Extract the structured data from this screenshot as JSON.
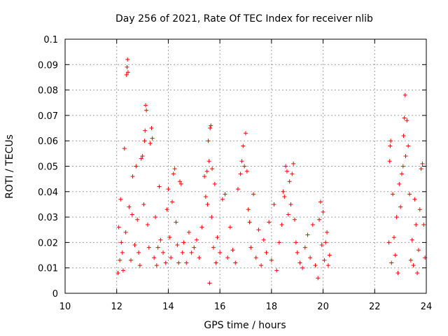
{
  "chart_data": {
    "type": "scatter",
    "title": "Day 256 of 2021, Rate Of TEC Index for receiver nlib",
    "xlabel": "GPS time / hours",
    "ylabel": "ROTI / TECUs",
    "xlim": [
      10,
      24
    ],
    "ylim": [
      0,
      0.1
    ],
    "xticks": [
      "10",
      "12",
      "14",
      "16",
      "18",
      "20",
      "22",
      "24"
    ],
    "yticks": [
      "0",
      "0.01",
      "0.02",
      "0.03",
      "0.04",
      "0.05",
      "0.06",
      "0.07",
      "0.08",
      "0.09",
      "0.1"
    ],
    "grid": true,
    "marker": "+",
    "color": "#ff0000",
    "series": [
      {
        "name": "",
        "points": [
          [
            12.05,
            0.008
          ],
          [
            12.08,
            0.026
          ],
          [
            12.12,
            0.013
          ],
          [
            12.15,
            0.037
          ],
          [
            12.18,
            0.02
          ],
          [
            12.22,
            0.016
          ],
          [
            12.25,
            0.009
          ],
          [
            12.3,
            0.057
          ],
          [
            12.35,
            0.024
          ],
          [
            12.38,
            0.086
          ],
          [
            12.4,
            0.089
          ],
          [
            12.42,
            0.092
          ],
          [
            12.44,
            0.087
          ],
          [
            12.48,
            0.034
          ],
          [
            12.55,
            0.013
          ],
          [
            12.6,
            0.031
          ],
          [
            12.62,
            0.046
          ],
          [
            12.7,
            0.019
          ],
          [
            12.75,
            0.05
          ],
          [
            12.8,
            0.029
          ],
          [
            12.85,
            0.016
          ],
          [
            12.9,
            0.011
          ],
          [
            12.95,
            0.053
          ],
          [
            13.0,
            0.054
          ],
          [
            13.05,
            0.035
          ],
          [
            13.08,
            0.06
          ],
          [
            13.1,
            0.064
          ],
          [
            13.12,
            0.074
          ],
          [
            13.15,
            0.072
          ],
          [
            13.2,
            0.027
          ],
          [
            13.25,
            0.018
          ],
          [
            13.3,
            0.059
          ],
          [
            13.35,
            0.065
          ],
          [
            13.38,
            0.061
          ],
          [
            13.45,
            0.014
          ],
          [
            13.5,
            0.03
          ],
          [
            13.55,
            0.011
          ],
          [
            13.6,
            0.018
          ],
          [
            13.65,
            0.042
          ],
          [
            13.7,
            0.021
          ],
          [
            13.8,
            0.016
          ],
          [
            13.9,
            0.012
          ],
          [
            13.95,
            0.033
          ],
          [
            14.0,
            0.041
          ],
          [
            14.05,
            0.022
          ],
          [
            14.1,
            0.014
          ],
          [
            14.15,
            0.036
          ],
          [
            14.2,
            0.047
          ],
          [
            14.25,
            0.049
          ],
          [
            14.3,
            0.028
          ],
          [
            14.35,
            0.019
          ],
          [
            14.4,
            0.012
          ],
          [
            14.45,
            0.044
          ],
          [
            14.5,
            0.043
          ],
          [
            14.55,
            0.016
          ],
          [
            14.6,
            0.02
          ],
          [
            14.7,
            0.012
          ],
          [
            14.8,
            0.024
          ],
          [
            14.9,
            0.016
          ],
          [
            15.0,
            0.018
          ],
          [
            15.1,
            0.021
          ],
          [
            15.2,
            0.014
          ],
          [
            15.3,
            0.026
          ],
          [
            15.4,
            0.046
          ],
          [
            15.45,
            0.038
          ],
          [
            15.5,
            0.048
          ],
          [
            15.52,
            0.035
          ],
          [
            15.55,
            0.06
          ],
          [
            15.58,
            0.052
          ],
          [
            15.6,
            0.004
          ],
          [
            15.62,
            0.065
          ],
          [
            15.65,
            0.066
          ],
          [
            15.68,
            0.03
          ],
          [
            15.7,
            0.049
          ],
          [
            15.75,
            0.018
          ],
          [
            15.8,
            0.043
          ],
          [
            15.85,
            0.012
          ],
          [
            15.9,
            0.022
          ],
          [
            16.0,
            0.016
          ],
          [
            16.1,
            0.037
          ],
          [
            16.2,
            0.039
          ],
          [
            16.3,
            0.014
          ],
          [
            16.4,
            0.026
          ],
          [
            16.5,
            0.017
          ],
          [
            16.6,
            0.012
          ],
          [
            16.7,
            0.041
          ],
          [
            16.8,
            0.047
          ],
          [
            16.85,
            0.052
          ],
          [
            16.9,
            0.058
          ],
          [
            16.95,
            0.05
          ],
          [
            17.0,
            0.063
          ],
          [
            17.05,
            0.048
          ],
          [
            17.1,
            0.033
          ],
          [
            17.15,
            0.028
          ],
          [
            17.2,
            0.018
          ],
          [
            17.3,
            0.039
          ],
          [
            17.4,
            0.014
          ],
          [
            17.5,
            0.025
          ],
          [
            17.6,
            0.011
          ],
          [
            17.7,
            0.021
          ],
          [
            17.8,
            0.016
          ],
          [
            17.9,
            0.028
          ],
          [
            18.0,
            0.013
          ],
          [
            18.1,
            0.035
          ],
          [
            18.2,
            0.009
          ],
          [
            18.3,
            0.02
          ],
          [
            18.4,
            0.027
          ],
          [
            18.45,
            0.04
          ],
          [
            18.5,
            0.038
          ],
          [
            18.55,
            0.05
          ],
          [
            18.6,
            0.048
          ],
          [
            18.65,
            0.031
          ],
          [
            18.7,
            0.044
          ],
          [
            18.75,
            0.035
          ],
          [
            18.8,
            0.047
          ],
          [
            18.85,
            0.051
          ],
          [
            18.9,
            0.029
          ],
          [
            18.95,
            0.02
          ],
          [
            19.0,
            0.016
          ],
          [
            19.1,
            0.012
          ],
          [
            19.2,
            0.01
          ],
          [
            19.3,
            0.018
          ],
          [
            19.4,
            0.023
          ],
          [
            19.5,
            0.014
          ],
          [
            19.6,
            0.027
          ],
          [
            19.7,
            0.011
          ],
          [
            19.8,
            0.006
          ],
          [
            19.85,
            0.029
          ],
          [
            19.9,
            0.036
          ],
          [
            19.95,
            0.019
          ],
          [
            20.0,
            0.032
          ],
          [
            20.05,
            0.013
          ],
          [
            20.1,
            0.02
          ],
          [
            20.15,
            0.024
          ],
          [
            20.2,
            0.011
          ],
          [
            20.25,
            0.015
          ],
          [
            22.55,
            0.02
          ],
          [
            22.58,
            0.052
          ],
          [
            22.6,
            0.058
          ],
          [
            22.62,
            0.06
          ],
          [
            22.65,
            0.012
          ],
          [
            22.7,
            0.039
          ],
          [
            22.75,
            0.022
          ],
          [
            22.8,
            0.015
          ],
          [
            22.85,
            0.03
          ],
          [
            22.9,
            0.008
          ],
          [
            22.95,
            0.043
          ],
          [
            23.0,
            0.034
          ],
          [
            23.05,
            0.047
          ],
          [
            23.1,
            0.05
          ],
          [
            23.12,
            0.062
          ],
          [
            23.15,
            0.069
          ],
          [
            23.18,
            0.078
          ],
          [
            23.2,
            0.054
          ],
          [
            23.25,
            0.068
          ],
          [
            23.3,
            0.058
          ],
          [
            23.35,
            0.039
          ],
          [
            23.4,
            0.013
          ],
          [
            23.45,
            0.021
          ],
          [
            23.5,
            0.011
          ],
          [
            23.55,
            0.037
          ],
          [
            23.6,
            0.027
          ],
          [
            23.65,
            0.008
          ],
          [
            23.7,
            0.017
          ],
          [
            23.75,
            0.033
          ],
          [
            23.8,
            0.049
          ],
          [
            23.85,
            0.051
          ],
          [
            23.9,
            0.027
          ],
          [
            23.95,
            0.014
          ]
        ]
      }
    ]
  }
}
